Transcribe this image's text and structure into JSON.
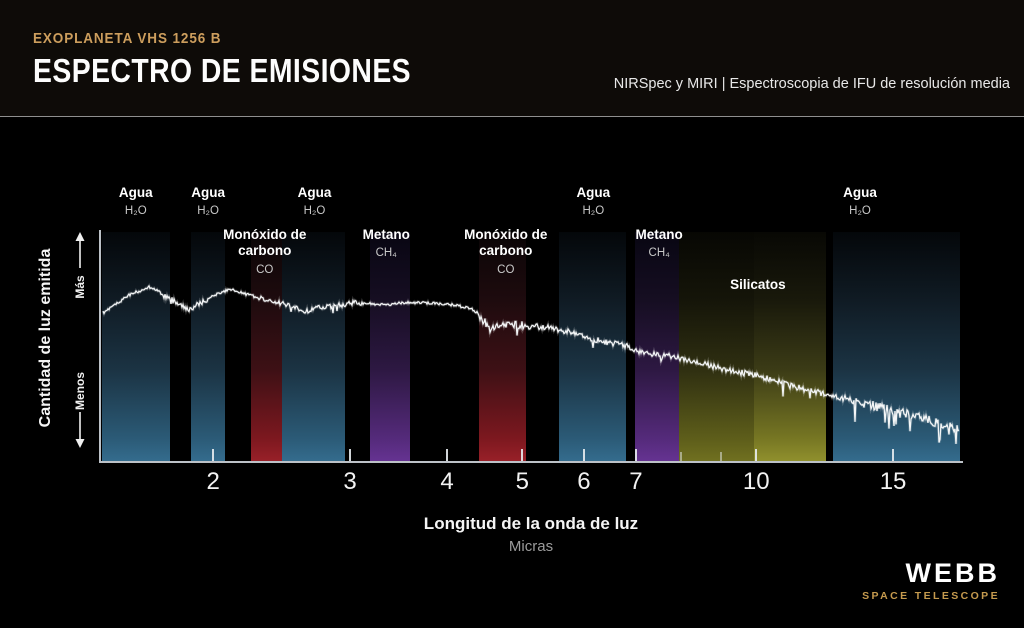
{
  "header": {
    "eyebrow": "EXOPLANETA VHS 1256 B",
    "title": "ESPECTRO DE EMISIONES",
    "instrument_note": "NIRSpec y MIRI | Espectroscopia de IFU de resolución media"
  },
  "y_axis": {
    "label": "Cantidad de luz emitida",
    "more": "Más",
    "less": "Menos"
  },
  "x_axis": {
    "title": "Longitud de la onda de luz",
    "subtitle": "Micras"
  },
  "logo": {
    "name": "WEBB",
    "tagline": "SPACE TELESCOPE"
  },
  "band_colors": {
    "blue": {
      "top": "#04070a",
      "upper": "#101b24",
      "mid": "#1b3343",
      "lower": "#2b5a76",
      "bottom": "#346c8d"
    },
    "red": {
      "top": "#0a0506",
      "upper": "#1e0b0e",
      "mid": "#3d1015",
      "lower": "#7c181f",
      "bottom": "#982028"
    },
    "purple": {
      "top": "#080612",
      "upper": "#160e22",
      "mid": "#2d1842",
      "lower": "#542a7a",
      "bottom": "#653391"
    },
    "olive": {
      "top": "#070703",
      "upper": "#151509",
      "mid": "#2f2f11",
      "lower": "#5d5d1a",
      "bottom": "#707020"
    },
    "olive_light": {
      "top": "#080804",
      "upper": "#19190b",
      "mid": "#3b3b16",
      "lower": "#767623",
      "bottom": "#90902d"
    }
  },
  "chart_data": {
    "type": "line",
    "title": "Espectro de emisiones del exoplaneta VHS 1256 B",
    "xlabel": "Longitud de la onda de luz (Micras)",
    "ylabel": "Cantidad de luz emitida (relativa, Menos a Más)",
    "x_scale": "log",
    "x_range_microns": [
      1.43,
      18.4
    ],
    "ticks_labeled": [
      2,
      3,
      4,
      5,
      6,
      7,
      10,
      15
    ],
    "ticks_minor": [
      8,
      9
    ],
    "grid": false,
    "absorption_bands": [
      {
        "molecule": "Agua",
        "formula": "H₂O",
        "color": "blue",
        "from": 1.44,
        "to": 1.76,
        "label_lambda": 1.59,
        "label_row": "agua"
      },
      {
        "molecule": "Agua",
        "formula": "H₂O",
        "color": "blue",
        "from": 1.87,
        "to": 2.07,
        "label_lambda": 1.97,
        "label_row": "agua"
      },
      {
        "molecule": "Monóxido de carbono",
        "formula": "CO",
        "color": "red",
        "from": 2.24,
        "to": 2.45,
        "label_lambda": 2.33,
        "label_row": "mol"
      },
      {
        "molecule": "Agua",
        "formula": "H₂O",
        "color": "blue",
        "from": 2.45,
        "to": 2.96,
        "label_lambda": 2.7,
        "label_row": "agua"
      },
      {
        "molecule": "Metano",
        "formula": "CH₄",
        "color": "purple",
        "from": 3.18,
        "to": 3.58,
        "label_lambda": 3.34,
        "label_row": "mol"
      },
      {
        "molecule": "Monóxido de carbono",
        "formula": "CO",
        "color": "red",
        "from": 4.4,
        "to": 5.06,
        "label_lambda": 4.76,
        "label_row": "mol"
      },
      {
        "molecule": "Agua",
        "formula": "H₂O",
        "color": "blue",
        "from": 5.58,
        "to": 6.79,
        "label_lambda": 6.17,
        "label_row": "agua"
      },
      {
        "molecule": "Metano",
        "formula": "CH₄",
        "color": "purple",
        "from": 6.98,
        "to": 7.95,
        "label_lambda": 7.5,
        "label_row": "mol"
      },
      {
        "molecule": "Silicatos",
        "formula": "",
        "color": "olive",
        "from": 7.95,
        "to": 9.92,
        "label_lambda": 10.05,
        "label_row": "band"
      },
      {
        "molecule": "Silicatos",
        "formula": "",
        "color": "olive_light",
        "from": 9.92,
        "to": 12.3,
        "label_lambda": null,
        "label_row": null
      },
      {
        "molecule": "Agua",
        "formula": "H₂O",
        "color": "blue",
        "from": 12.55,
        "to": 18.3,
        "label_lambda": 13.6,
        "label_row": "agua"
      }
    ],
    "series": [
      {
        "name": "espectro de emisión",
        "points": [
          [
            1.44,
            0.85
          ],
          [
            1.5,
            0.9
          ],
          [
            1.56,
            0.955
          ],
          [
            1.62,
            0.985
          ],
          [
            1.66,
            1.0
          ],
          [
            1.7,
            0.975
          ],
          [
            1.75,
            0.935
          ],
          [
            1.8,
            0.905
          ],
          [
            1.86,
            0.875
          ],
          [
            1.9,
            0.895
          ],
          [
            1.95,
            0.925
          ],
          [
            2.0,
            0.95
          ],
          [
            2.06,
            0.975
          ],
          [
            2.11,
            0.985
          ],
          [
            2.16,
            0.97
          ],
          [
            2.22,
            0.955
          ],
          [
            2.3,
            0.935
          ],
          [
            2.4,
            0.915
          ],
          [
            2.5,
            0.895
          ],
          [
            2.62,
            0.86
          ],
          [
            2.7,
            0.875
          ],
          [
            2.8,
            0.885
          ],
          [
            2.9,
            0.895
          ],
          [
            3.05,
            0.91
          ],
          [
            3.2,
            0.905
          ],
          [
            3.35,
            0.895
          ],
          [
            3.5,
            0.91
          ],
          [
            3.7,
            0.91
          ],
          [
            3.9,
            0.905
          ],
          [
            4.1,
            0.895
          ],
          [
            4.3,
            0.875
          ],
          [
            4.45,
            0.81
          ],
          [
            4.55,
            0.755
          ],
          [
            4.65,
            0.77
          ],
          [
            4.75,
            0.78
          ],
          [
            4.9,
            0.785
          ],
          [
            5.05,
            0.78
          ],
          [
            5.2,
            0.775
          ],
          [
            5.4,
            0.765
          ],
          [
            5.6,
            0.75
          ],
          [
            5.8,
            0.74
          ],
          [
            6.0,
            0.715
          ],
          [
            6.2,
            0.7
          ],
          [
            6.4,
            0.685
          ],
          [
            6.6,
            0.672
          ],
          [
            6.8,
            0.66
          ],
          [
            7.0,
            0.635
          ],
          [
            7.2,
            0.625
          ],
          [
            7.4,
            0.615
          ],
          [
            7.6,
            0.605
          ],
          [
            7.8,
            0.6
          ],
          [
            8.0,
            0.585
          ],
          [
            8.3,
            0.57
          ],
          [
            8.6,
            0.555
          ],
          [
            9.0,
            0.53
          ],
          [
            9.4,
            0.515
          ],
          [
            9.8,
            0.5
          ],
          [
            10.2,
            0.48
          ],
          [
            10.6,
            0.46
          ],
          [
            11.0,
            0.435
          ],
          [
            11.5,
            0.415
          ],
          [
            12.0,
            0.395
          ],
          [
            12.5,
            0.375
          ],
          [
            13.0,
            0.355
          ],
          [
            13.5,
            0.34
          ],
          [
            14.0,
            0.325
          ],
          [
            14.5,
            0.305
          ],
          [
            15.0,
            0.29
          ],
          [
            15.5,
            0.275
          ],
          [
            16.0,
            0.255
          ],
          [
            16.5,
            0.24
          ],
          [
            17.0,
            0.225
          ],
          [
            17.5,
            0.205
          ],
          [
            18.0,
            0.19
          ],
          [
            18.25,
            0.185
          ]
        ]
      }
    ],
    "noise": {
      "seed": 7,
      "segments": [
        {
          "to": 1.72,
          "amp": 1.6,
          "spike": 0
        },
        {
          "to": 1.97,
          "amp": 3.2,
          "spike": 0.02
        },
        {
          "to": 2.28,
          "amp": 1.4,
          "spike": 0
        },
        {
          "to": 3.12,
          "amp": 2.6,
          "spike": 0.02
        },
        {
          "to": 4.35,
          "amp": 1.3,
          "spike": 0
        },
        {
          "to": 5.15,
          "amp": 4.0,
          "spike": 0.03
        },
        {
          "to": 8.0,
          "amp": 3.0,
          "spike": 0.025
        },
        {
          "to": 13.0,
          "amp": 3.0,
          "spike": 0.03
        },
        {
          "to": 18.4,
          "amp": 4.5,
          "spike": 0.06
        }
      ]
    }
  }
}
